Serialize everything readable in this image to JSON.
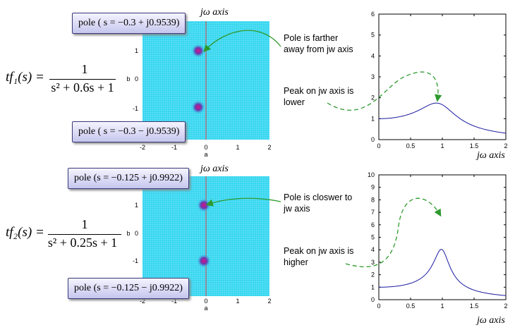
{
  "panels": [
    {
      "tf_label": "tf₁(s) =",
      "numerator": "1",
      "denominator": "s² + 0.6s + 1",
      "pole_top": "pole ( s = −0.3 + j0.9539)",
      "pole_bottom": "pole ( s = −0.3 − j0.9539)",
      "pole_real": -0.3,
      "pole_imag": 0.9539,
      "pole_axis_title": "jω axis",
      "pole_xlabel": "a",
      "pole_ylabel": "b",
      "pole_xticks": [
        "-2",
        "-1",
        "0",
        "1",
        "2"
      ],
      "pole_yticks": [
        "1",
        "0",
        "-1"
      ],
      "annotation_pole": "Pole is farther\naway from jw axis",
      "annotation_peak": "Peak on jw axis is\nlower",
      "mag_xlabel": "jω axis"
    },
    {
      "tf_label": "tf₂(s) =",
      "numerator": "1",
      "denominator": "s² + 0.25s + 1",
      "pole_top": "pole (s = −0.125 + j0.9922)",
      "pole_bottom": "pole (s = −0.125 − j0.9922)",
      "pole_real": -0.125,
      "pole_imag": 0.9922,
      "pole_axis_title": "jω axis",
      "pole_xlabel": "a",
      "pole_ylabel": "b",
      "pole_xticks": [
        "-2",
        "-1",
        "0",
        "1",
        "2"
      ],
      "pole_yticks": [
        "1",
        "0",
        "-1"
      ],
      "annotation_pole": "Pole is closwer to\njw axis",
      "annotation_peak": "Peak on jw axis is\nhigher",
      "mag_xlabel": "jω axis"
    }
  ],
  "colors": {
    "field": "#33d6f0",
    "field_grid": "#ffffff",
    "pole_spot": "#cc2288",
    "imag_axis": "#cc4444",
    "curve": "#1a1aa0",
    "arrow": "#2e9a2e",
    "box_border": "#3a3a7a"
  },
  "chart_data": [
    {
      "type": "line",
      "title": "",
      "xlabel": "jω axis",
      "ylabel": "",
      "xlim": [
        0,
        2
      ],
      "ylim": [
        0,
        6
      ],
      "xticks": [
        0,
        0.5,
        1,
        1.5,
        2
      ],
      "yticks": [
        0,
        1,
        2,
        3,
        4,
        5,
        6
      ],
      "grid": false,
      "series": [
        {
          "a1": 0.6,
          "a0": 1,
          "peak_x": 0.9,
          "peak_y": 1.75
        }
      ]
    },
    {
      "type": "line",
      "title": "",
      "xlabel": "jω axis",
      "ylabel": "",
      "xlim": [
        0,
        2
      ],
      "ylim": [
        0,
        10
      ],
      "xticks": [
        0,
        0.5,
        1,
        1.5,
        2
      ],
      "yticks": [
        0,
        1,
        2,
        3,
        4,
        5,
        6,
        7,
        8,
        9,
        10
      ],
      "grid": false,
      "series": [
        {
          "a1": 0.25,
          "a0": 1,
          "peak_x": 0.98,
          "peak_y": 4.04
        }
      ]
    }
  ]
}
